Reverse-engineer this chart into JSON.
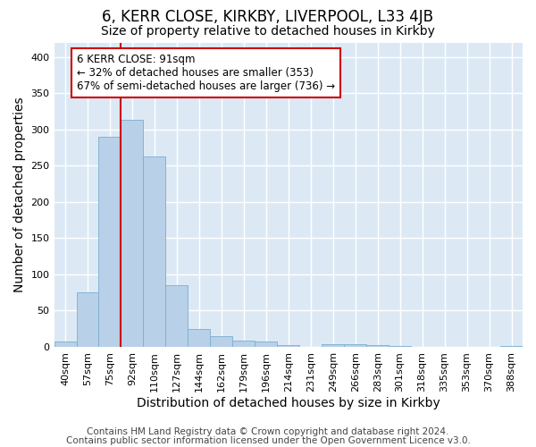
{
  "title": "6, KERR CLOSE, KIRKBY, LIVERPOOL, L33 4JB",
  "subtitle": "Size of property relative to detached houses in Kirkby",
  "xlabel": "Distribution of detached houses by size in Kirkby",
  "ylabel": "Number of detached properties",
  "footer_line1": "Contains HM Land Registry data © Crown copyright and database right 2024.",
  "footer_line2": "Contains public sector information licensed under the Open Government Licence v3.0.",
  "bin_labels": [
    "40sqm",
    "57sqm",
    "75sqm",
    "92sqm",
    "110sqm",
    "127sqm",
    "144sqm",
    "162sqm",
    "179sqm",
    "196sqm",
    "214sqm",
    "231sqm",
    "249sqm",
    "266sqm",
    "283sqm",
    "301sqm",
    "318sqm",
    "335sqm",
    "353sqm",
    "370sqm",
    "388sqm"
  ],
  "bar_heights": [
    7,
    75,
    290,
    313,
    263,
    85,
    25,
    15,
    9,
    7,
    3,
    0,
    4,
    4,
    3,
    1,
    0,
    0,
    0,
    0,
    1
  ],
  "bar_color": "#b8d0e8",
  "bar_edge_color": "#7aafd0",
  "vline_color": "#cc0000",
  "annotation_text": "6 KERR CLOSE: 91sqm\n← 32% of detached houses are smaller (353)\n67% of semi-detached houses are larger (736) →",
  "annotation_box_color": "#ffffff",
  "annotation_box_edge": "#cc0000",
  "ylim": [
    0,
    420
  ],
  "yticks": [
    0,
    50,
    100,
    150,
    200,
    250,
    300,
    350,
    400
  ],
  "fig_bg_color": "#ffffff",
  "plot_bg_color": "#dce9f5",
  "grid_color": "#ffffff",
  "title_fontsize": 12,
  "subtitle_fontsize": 10,
  "axis_label_fontsize": 10,
  "tick_fontsize": 8,
  "footer_fontsize": 7.5,
  "annotation_fontsize": 8.5
}
